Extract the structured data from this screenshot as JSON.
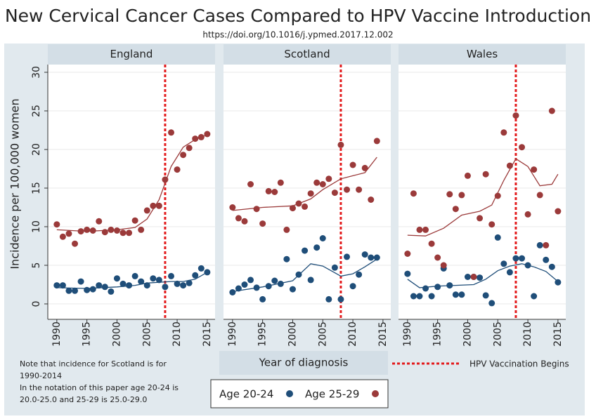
{
  "title": "New Cervical Cancer Cases Compared to HPV Vaccine Introduction",
  "subtitle": "https://doi.org/10.1016/j.ypmed.2017.12.002",
  "ylabel": "Incidence per 100,000 women",
  "xlabel": "Year of diagnosis",
  "note": [
    "Note that incidence for Scotland is for",
    "1990-2014",
    "In the notation of this paper age 20-24 is",
    "20.0-25.0 and 25-29 is 25.0-29.0"
  ],
  "legend": [
    {
      "name": "Age 20-24",
      "color": "#1f4e79"
    },
    {
      "name": "Age 25-29",
      "color": "#9b3a3a"
    }
  ],
  "vline": {
    "x": 2008,
    "label": "HPV Vaccination Begins",
    "color": "#e31a1c"
  },
  "chart_data": [
    {
      "type": "scatter",
      "title": "England",
      "xlim": [
        1988.5,
        2016.3
      ],
      "ylim": [
        -2,
        31
      ],
      "xticks": [
        1990,
        1995,
        2000,
        2005,
        2010,
        2015
      ],
      "yticks": [
        0,
        5,
        10,
        15,
        20,
        25,
        30
      ],
      "x": [
        1990,
        1991,
        1992,
        1993,
        1994,
        1995,
        1996,
        1997,
        1998,
        1999,
        2000,
        2001,
        2002,
        2003,
        2004,
        2005,
        2006,
        2007,
        2008,
        2009,
        2010,
        2011,
        2012,
        2013,
        2014,
        2015
      ],
      "series": [
        {
          "values": [
            2.4,
            2.4,
            1.7,
            1.7,
            2.9,
            1.8,
            1.9,
            2.4,
            2.2,
            1.6,
            3.3,
            2.6,
            2.4,
            3.6,
            2.9,
            2.4,
            3.3,
            3.1,
            2.2,
            3.6,
            2.6,
            2.4,
            2.7,
            3.7,
            4.6,
            4.1
          ],
          "trend": {
            "x": [
              1990,
              1995,
              2000,
              2003,
              2005,
              2007,
              2009,
              2011,
              2013,
              2015
            ],
            "values": [
              2.1,
              2.0,
              2.2,
              2.4,
              2.7,
              2.8,
              2.9,
              2.9,
              3.2,
              4.1
            ]
          }
        },
        {
          "values": [
            10.3,
            8.7,
            9.1,
            7.8,
            9.4,
            9.6,
            9.5,
            10.7,
            9.3,
            9.6,
            9.5,
            9.2,
            9.2,
            10.8,
            9.6,
            12.1,
            12.7,
            12.7,
            16.1,
            22.2,
            17.4,
            19.3,
            20.2,
            21.4,
            21.6,
            22.0
          ],
          "trend": {
            "x": [
              1990,
              1995,
              2000,
              2003,
              2005,
              2007,
              2009,
              2011,
              2013,
              2015
            ],
            "values": [
              9.6,
              9.4,
              9.6,
              9.9,
              11,
              13.5,
              17.8,
              20.3,
              21.3,
              21.9
            ]
          }
        }
      ]
    },
    {
      "type": "scatter",
      "title": "Scotland",
      "xlim": [
        1988.5,
        2016.3
      ],
      "ylim": [
        -2,
        31
      ],
      "xticks": [
        1990,
        1995,
        2000,
        2005,
        2010,
        2015
      ],
      "yticks": [
        0,
        5,
        10,
        15,
        20,
        25,
        30
      ],
      "x": [
        1990,
        1991,
        1992,
        1993,
        1994,
        1995,
        1996,
        1997,
        1998,
        1999,
        2000,
        2001,
        2002,
        2003,
        2004,
        2005,
        2006,
        2007,
        2008,
        2009,
        2010,
        2011,
        2012,
        2013,
        2014
      ],
      "series": [
        {
          "values": [
            1.5,
            2.0,
            2.5,
            3.1,
            2.1,
            0.6,
            2.3,
            3.0,
            2.6,
            5.8,
            1.9,
            3.8,
            6.9,
            3.1,
            7.3,
            8.5,
            0.6,
            4.7,
            0.6,
            6.1,
            2.3,
            3.8,
            6.4,
            6.0,
            6.0
          ],
          "trend": {
            "x": [
              1990,
              1995,
              2000,
              2003,
              2005,
              2008,
              2010,
              2012,
              2014
            ],
            "values": [
              1.6,
              2.2,
              3.0,
              5.2,
              4.9,
              3.6,
              3.9,
              4.8,
              5.8
            ]
          }
        },
        {
          "values": [
            12.5,
            11.1,
            10.7,
            15.5,
            12.3,
            10.4,
            14.6,
            14.5,
            15.7,
            9.6,
            12.4,
            13.0,
            12.6,
            14.3,
            15.7,
            15.5,
            16.2,
            14.4,
            20.6,
            14.8,
            18.0,
            14.8,
            17.6,
            13.5,
            21.1
          ],
          "trend": {
            "x": [
              1990,
              1995,
              2000,
              2003,
              2005,
              2008,
              2010,
              2012,
              2014
            ],
            "values": [
              12.1,
              12.5,
              12.7,
              13.6,
              14.8,
              16.2,
              16.6,
              17.0,
              19.0
            ]
          }
        }
      ]
    },
    {
      "type": "scatter",
      "title": "Wales",
      "xlim": [
        1988.5,
        2016.3
      ],
      "ylim": [
        -2,
        31
      ],
      "xticks": [
        1990,
        1995,
        2000,
        2005,
        2010,
        2015
      ],
      "yticks": [
        0,
        5,
        10,
        15,
        20,
        25,
        30
      ],
      "x": [
        1990,
        1991,
        1992,
        1993,
        1994,
        1995,
        1996,
        1997,
        1998,
        1999,
        2000,
        2001,
        2002,
        2003,
        2004,
        2005,
        2006,
        2007,
        2008,
        2009,
        2010,
        2011,
        2012,
        2013,
        2014,
        2015
      ],
      "series": [
        {
          "values": [
            3.9,
            1.0,
            1.0,
            2.0,
            1.0,
            2.2,
            4.6,
            2.4,
            1.2,
            1.2,
            3.5,
            3.5,
            3.4,
            1.1,
            0.1,
            8.6,
            5.2,
            4.1,
            5.9,
            5.9,
            5.0,
            1.0,
            7.6,
            5.7,
            4.8,
            2.8
          ],
          "trend": {
            "x": [
              1990,
              1992,
              1995,
              1998,
              2001,
              2003,
              2005,
              2007,
              2009,
              2011,
              2013,
              2015
            ],
            "values": [
              3.2,
              2.1,
              2.3,
              2.4,
              2.5,
              3.2,
              4.3,
              4.9,
              5.2,
              4.8,
              4.2,
              2.9
            ]
          }
        },
        {
          "values": [
            6.5,
            14.3,
            9.6,
            9.6,
            7.8,
            6.0,
            5.0,
            14.2,
            12.3,
            14.1,
            16.6,
            3.5,
            11.1,
            16.8,
            10.3,
            14.0,
            22.2,
            17.9,
            24.4,
            20.3,
            11.6,
            17.4,
            14.1,
            7.6,
            25.0,
            12.0
          ],
          "trend": {
            "x": [
              1990,
              1993,
              1996,
              1999,
              2002,
              2004,
              2006,
              2008,
              2010,
              2012,
              2014,
              2015
            ],
            "values": [
              8.9,
              8.8,
              9.8,
              11.5,
              12.0,
              12.8,
              16.0,
              18.8,
              17.8,
              15.3,
              15.5,
              16.8
            ]
          }
        }
      ]
    }
  ]
}
